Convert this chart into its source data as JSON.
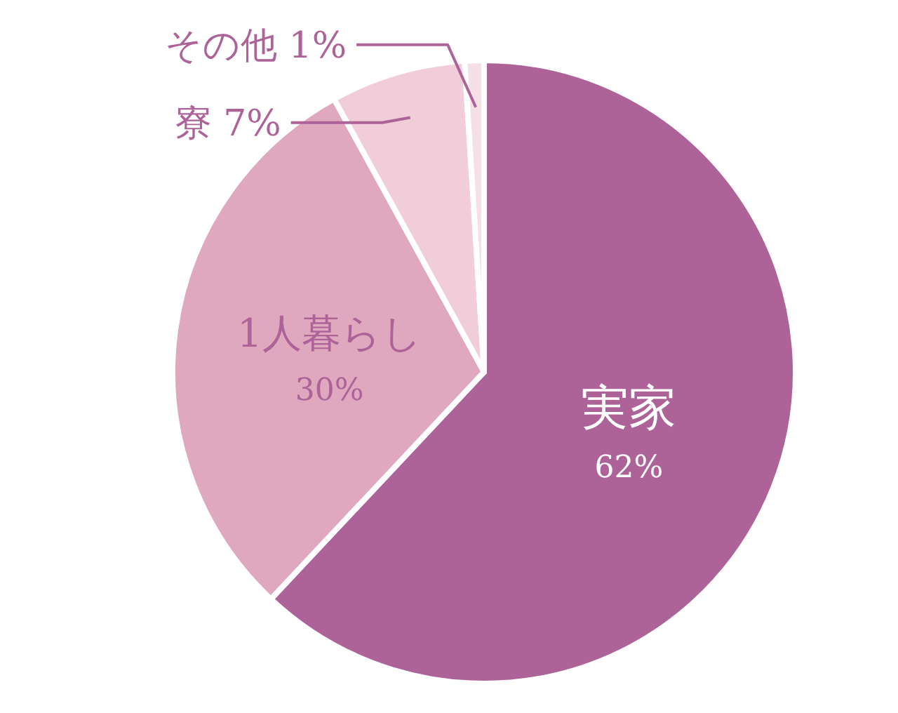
{
  "chart_data": {
    "type": "pie",
    "categories": [
      "実家",
      "1人暮らし",
      "寮",
      "その他"
    ],
    "values": [
      62,
      30,
      7,
      1
    ],
    "value_labels": [
      "62%",
      "30%",
      "7%",
      "1%"
    ],
    "colors": [
      "#ad6298",
      "#dfa8bf",
      "#f1cdda",
      "#f6e0e7"
    ]
  }
}
